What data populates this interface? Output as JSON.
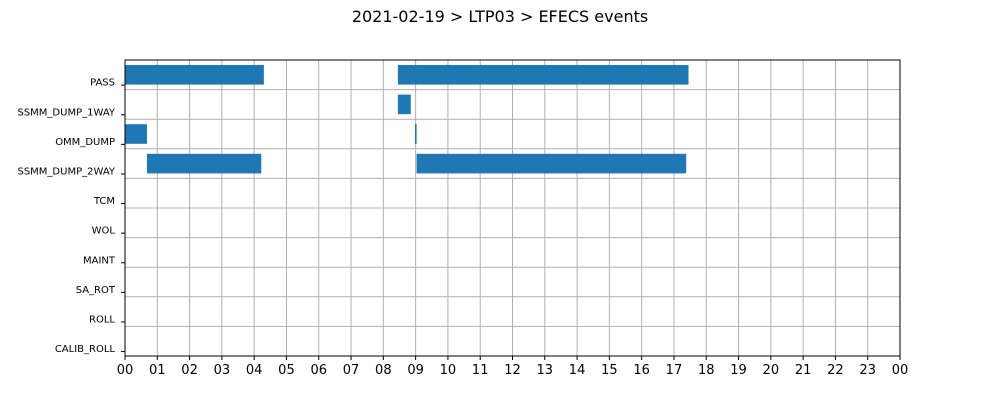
{
  "chart_data": {
    "type": "bar",
    "orientation": "horizontal-timeline",
    "title": "2021-02-19 > LTP03 > EFECS events",
    "categories": [
      "PASS",
      "SSMM_DUMP_1WAY",
      "OMM_DUMP",
      "SSMM_DUMP_2WAY",
      "TCM",
      "WOL",
      "MAINT",
      "SA_ROT",
      "ROLL",
      "CALIB_ROLL"
    ],
    "x_ticks": [
      "00",
      "01",
      "02",
      "03",
      "04",
      "05",
      "06",
      "07",
      "08",
      "09",
      "10",
      "11",
      "12",
      "13",
      "14",
      "15",
      "16",
      "17",
      "18",
      "19",
      "20",
      "21",
      "22",
      "23",
      "00"
    ],
    "xlim_hours": [
      0,
      24
    ],
    "grid": true,
    "bar_color": "#1f77b4",
    "events": [
      {
        "category": "PASS",
        "start": 0.0,
        "end": 4.3
      },
      {
        "category": "PASS",
        "start": 8.45,
        "end": 17.45
      },
      {
        "category": "SSMM_DUMP_1WAY",
        "start": 8.45,
        "end": 8.85
      },
      {
        "category": "OMM_DUMP",
        "start": 0.0,
        "end": 0.68
      },
      {
        "category": "OMM_DUMP",
        "start": 8.98,
        "end": 9.03
      },
      {
        "category": "SSMM_DUMP_2WAY",
        "start": 0.68,
        "end": 4.22
      },
      {
        "category": "SSMM_DUMP_2WAY",
        "start": 9.03,
        "end": 17.38
      }
    ]
  }
}
